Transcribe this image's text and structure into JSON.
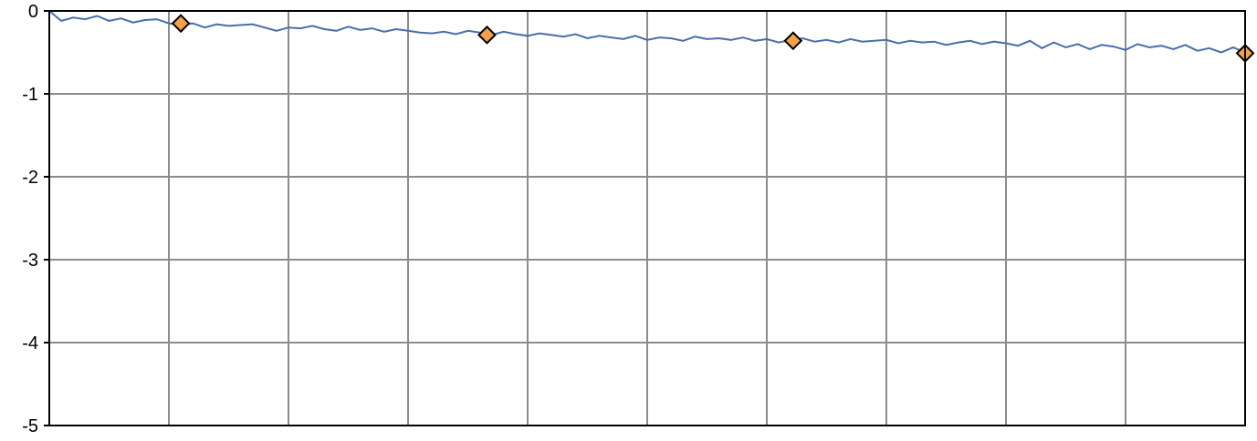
{
  "chart_data": {
    "type": "line",
    "title": "",
    "xlabel": "",
    "ylabel": "",
    "ylim": [
      -5,
      0
    ],
    "xlim": [
      0,
      500
    ],
    "y_ticks": [
      0,
      -1,
      -2,
      -3,
      -4,
      -5
    ],
    "y_tick_labels": [
      "0",
      "-1",
      "-2",
      "-3",
      "-4",
      "-5"
    ],
    "x_gridlines": 10,
    "grid": true,
    "legend": "none",
    "series": [
      {
        "color": "#4a6eaa",
        "style": "line",
        "x": [
          0,
          5,
          10,
          15,
          20,
          25,
          30,
          35,
          40,
          45,
          50,
          55,
          60,
          65,
          70,
          75,
          80,
          85,
          90,
          95,
          100,
          105,
          110,
          115,
          120,
          125,
          130,
          135,
          140,
          145,
          150,
          155,
          160,
          165,
          170,
          175,
          180,
          185,
          190,
          195,
          200,
          205,
          210,
          215,
          220,
          225,
          230,
          235,
          240,
          245,
          250,
          255,
          260,
          265,
          270,
          275,
          280,
          285,
          290,
          295,
          300,
          305,
          310,
          315,
          320,
          325,
          330,
          335,
          340,
          345,
          350,
          355,
          360,
          365,
          370,
          375,
          380,
          385,
          390,
          395,
          400,
          405,
          410,
          415,
          420,
          425,
          430,
          435,
          440,
          445,
          450,
          455,
          460,
          465,
          470,
          475,
          480,
          485,
          490,
          495,
          500
        ],
        "values": [
          0.0,
          -0.12,
          -0.08,
          -0.1,
          -0.06,
          -0.12,
          -0.09,
          -0.14,
          -0.11,
          -0.1,
          -0.15,
          -0.17,
          -0.15,
          -0.2,
          -0.16,
          -0.18,
          -0.17,
          -0.16,
          -0.2,
          -0.24,
          -0.2,
          -0.21,
          -0.18,
          -0.22,
          -0.24,
          -0.19,
          -0.23,
          -0.21,
          -0.25,
          -0.22,
          -0.24,
          -0.26,
          -0.27,
          -0.25,
          -0.28,
          -0.24,
          -0.26,
          -0.29,
          -0.25,
          -0.28,
          -0.3,
          -0.27,
          -0.29,
          -0.31,
          -0.28,
          -0.33,
          -0.3,
          -0.32,
          -0.34,
          -0.3,
          -0.35,
          -0.32,
          -0.33,
          -0.36,
          -0.31,
          -0.34,
          -0.33,
          -0.35,
          -0.32,
          -0.36,
          -0.34,
          -0.38,
          -0.35,
          -0.33,
          -0.37,
          -0.35,
          -0.38,
          -0.34,
          -0.37,
          -0.36,
          -0.35,
          -0.39,
          -0.36,
          -0.38,
          -0.37,
          -0.41,
          -0.38,
          -0.36,
          -0.4,
          -0.37,
          -0.39,
          -0.42,
          -0.36,
          -0.45,
          -0.38,
          -0.44,
          -0.4,
          -0.46,
          -0.41,
          -0.43,
          -0.47,
          -0.4,
          -0.44,
          -0.42,
          -0.46,
          -0.41,
          -0.48,
          -0.45,
          -0.5,
          -0.44,
          -0.5
        ]
      },
      {
        "color": "#f4a04a",
        "style": "markers",
        "marker": "diamond",
        "x": [
          55,
          183,
          311,
          500
        ],
        "values": [
          -0.15,
          -0.29,
          -0.36,
          -0.51
        ]
      }
    ]
  }
}
